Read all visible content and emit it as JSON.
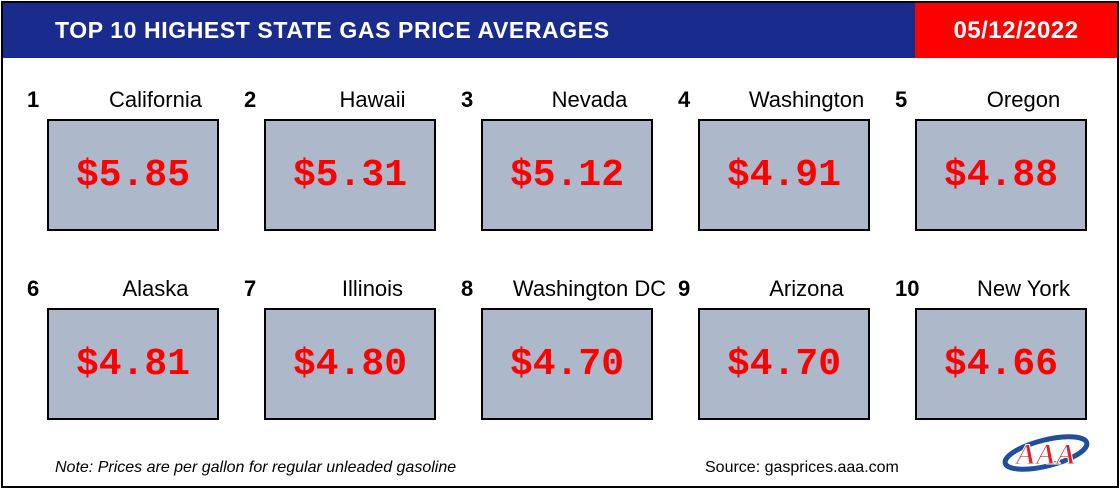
{
  "header": {
    "title": "TOP 10 HIGHEST STATE GAS PRICE AVERAGES",
    "date": "05/12/2022"
  },
  "prices": [
    {
      "rank": "1",
      "state": "California",
      "price": "$5.85"
    },
    {
      "rank": "2",
      "state": "Hawaii",
      "price": "$5.31"
    },
    {
      "rank": "3",
      "state": "Nevada",
      "price": "$5.12"
    },
    {
      "rank": "4",
      "state": "Washington",
      "price": "$4.91"
    },
    {
      "rank": "5",
      "state": "Oregon",
      "price": "$4.88"
    },
    {
      "rank": "6",
      "state": "Alaska",
      "price": "$4.81"
    },
    {
      "rank": "7",
      "state": "Illinois",
      "price": "$4.80"
    },
    {
      "rank": "8",
      "state": "Washington DC",
      "price": "$4.70"
    },
    {
      "rank": "9",
      "state": "Arizona",
      "price": "$4.70"
    },
    {
      "rank": "10",
      "state": "New York",
      "price": "$4.66"
    }
  ],
  "footer": {
    "note": "Note: Prices are per gallon for regular unleaded gasoline",
    "source": "Source: gasprices.aaa.com",
    "logo_text": "AAA"
  },
  "colors": {
    "banner": "#1a2b8e",
    "date_bg": "#ff0000",
    "price_box": "#adb9ca",
    "price_text": "#ff0000",
    "logo_red": "#e41f26",
    "logo_blue": "#1f4e9b"
  }
}
